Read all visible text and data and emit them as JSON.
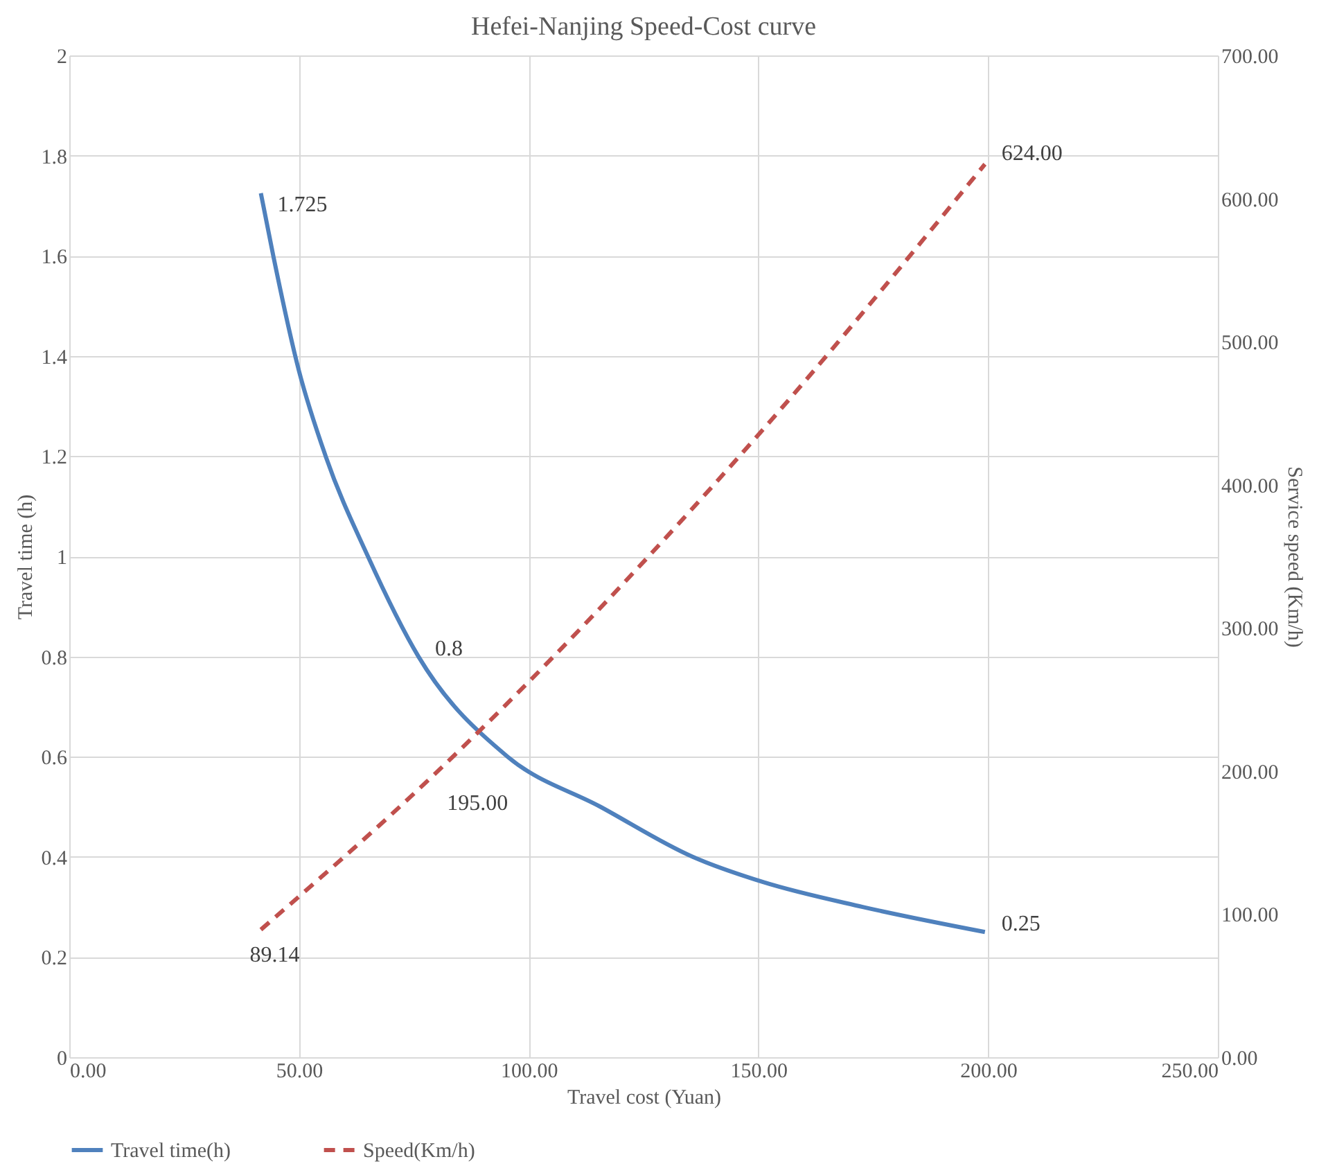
{
  "chart_data": {
    "type": "line",
    "title": "Hefei-Nanjing Speed-Cost curve",
    "xlabel": "Travel cost (Yuan)",
    "ylabel": "Travel time (h)",
    "y2label": "Service speed (Km/h)",
    "xlim": [
      0,
      250
    ],
    "xticks": [
      {
        "value": 0,
        "label": "0.00"
      },
      {
        "value": 50,
        "label": "50.00"
      },
      {
        "value": 100,
        "label": "100.00"
      },
      {
        "value": 150,
        "label": "150.00"
      },
      {
        "value": 200,
        "label": "200.00"
      },
      {
        "value": 250,
        "label": "250.00"
      }
    ],
    "ylim": [
      0,
      2
    ],
    "yticks": [
      0,
      0.2,
      0.4,
      0.6,
      0.8,
      1,
      1.2,
      1.4,
      1.6,
      1.8,
      2
    ],
    "y2lim": [
      0,
      700
    ],
    "y2ticks": [
      {
        "value": 0,
        "label": "0.00"
      },
      {
        "value": 100,
        "label": "100.00"
      },
      {
        "value": 200,
        "label": "200.00"
      },
      {
        "value": 300,
        "label": "300.00"
      },
      {
        "value": 400,
        "label": "400.00"
      },
      {
        "value": 500,
        "label": "500.00"
      },
      {
        "value": 600,
        "label": "600.00"
      },
      {
        "value": 700,
        "label": "700.00"
      }
    ],
    "grid": true,
    "legend": "bottom",
    "series": [
      {
        "name": "Travel time(h)",
        "color": "#4f81bd",
        "line_style": "solid",
        "x": [
          41.7,
          44.4,
          50,
          55.8,
          65,
          76,
          95.4,
          115.6,
          135.7,
          150.9,
          172.7,
          199.3
        ],
        "values": [
          1.725,
          1.6,
          1.37,
          1.2,
          1.0,
          0.8,
          0.6,
          0.5,
          0.4,
          0.35,
          0.3,
          0.25
        ],
        "value_labels": [
          "1.725",
          null,
          null,
          null,
          null,
          "0.8",
          null,
          null,
          null,
          null,
          null,
          "0.25"
        ]
      },
      {
        "name": "Speed(Km/h)",
        "color": "#c0504d",
        "line_style": "dashed",
        "axis": "y2",
        "x": [
          41.7,
          78.6,
          150,
          199.3
        ],
        "values": [
          89.14,
          195,
          435,
          624
        ],
        "value_labels": [
          "89.14",
          "195.00",
          null,
          "624.00"
        ]
      }
    ]
  }
}
